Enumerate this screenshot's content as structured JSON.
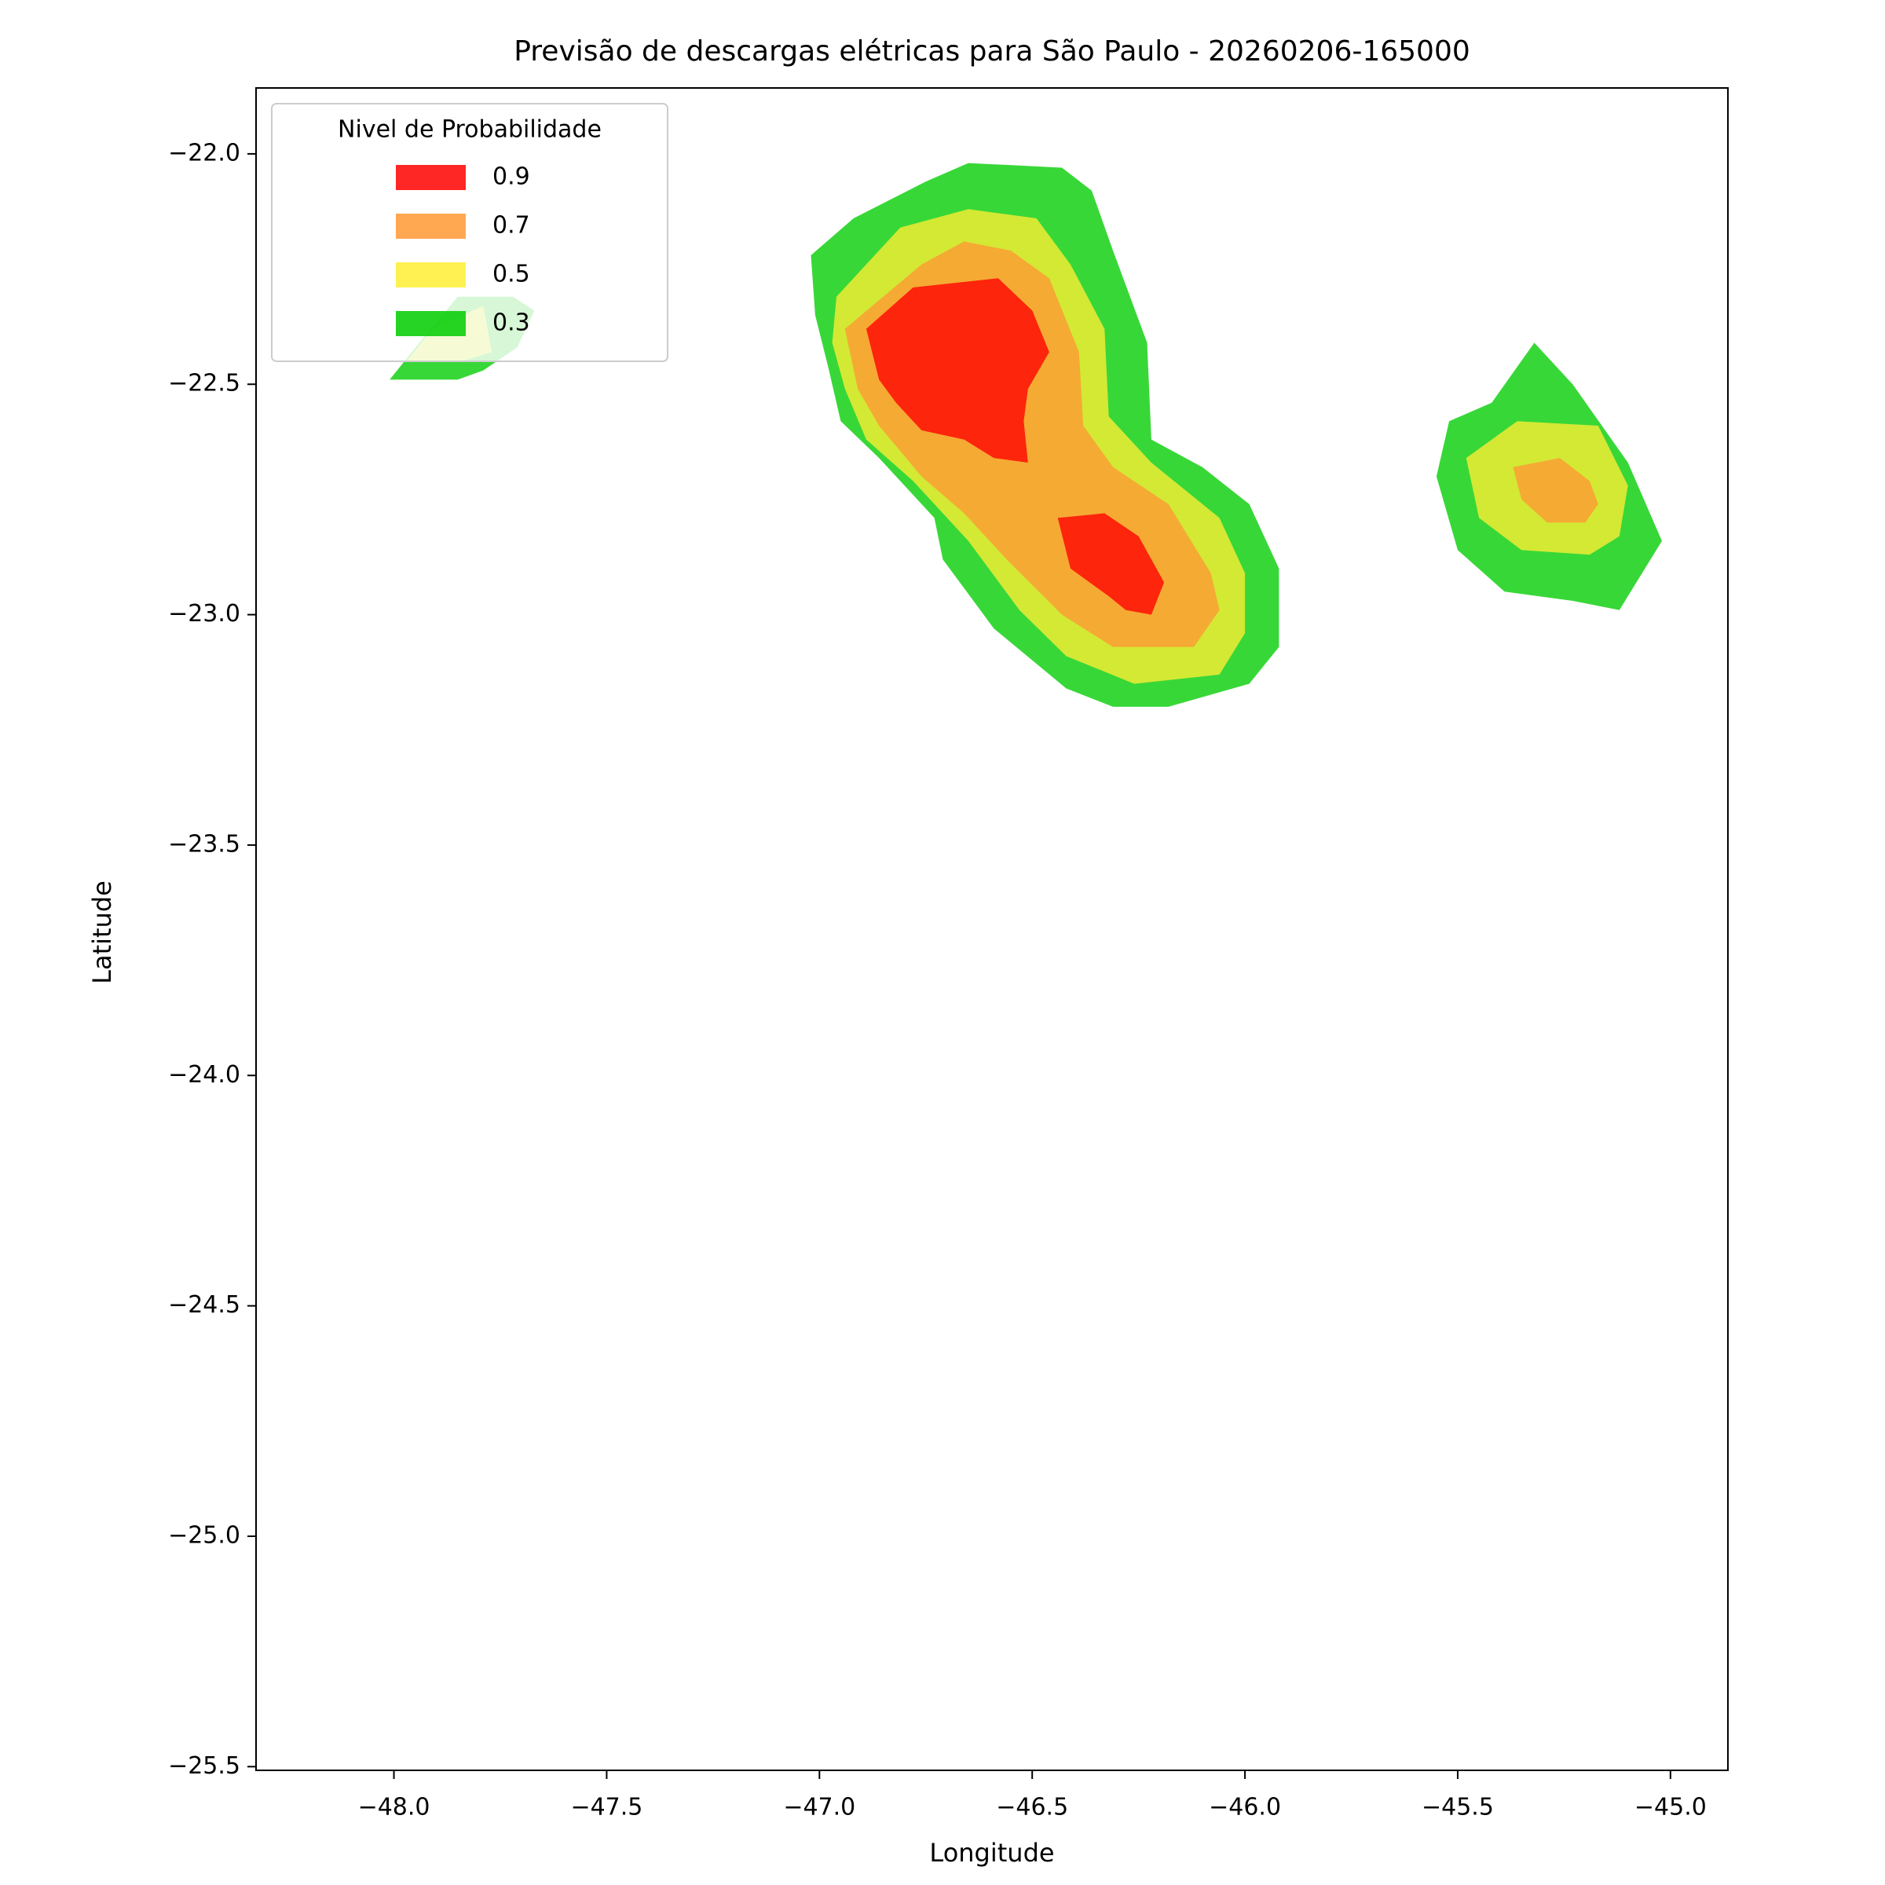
{
  "chart_data": {
    "type": "contour",
    "title": "Previsão de descargas elétricas para São Paulo - 20260206-165000",
    "xlabel": "Longitude",
    "ylabel": "Latitude",
    "legend_title": "Nivel de Probabilidade",
    "legend": "upper left",
    "xlim": [
      -48.324,
      -44.865
    ],
    "ylim": [
      -25.508,
      -21.857
    ],
    "xticks": [
      {
        "value": -48.0,
        "label": "−48.0"
      },
      {
        "value": -47.5,
        "label": "−47.5"
      },
      {
        "value": -47.0,
        "label": "−47.0"
      },
      {
        "value": -46.5,
        "label": "−46.5"
      },
      {
        "value": -46.0,
        "label": "−46.0"
      },
      {
        "value": -45.5,
        "label": "−45.5"
      },
      {
        "value": -45.0,
        "label": "−45.0"
      }
    ],
    "yticks": [
      {
        "value": -22.0,
        "label": "−22.0"
      },
      {
        "value": -22.5,
        "label": "−22.5"
      },
      {
        "value": -23.0,
        "label": "−23.0"
      },
      {
        "value": -23.5,
        "label": "−23.5"
      },
      {
        "value": -24.0,
        "label": "−24.0"
      },
      {
        "value": -24.5,
        "label": "−24.5"
      },
      {
        "value": -25.0,
        "label": "−25.0"
      },
      {
        "value": -25.5,
        "label": "−25.5"
      }
    ],
    "series": [
      {
        "name": "0.9",
        "color": "#ff0000",
        "polygons": [
          {
            "x": [
              -46.89,
              -46.78,
              -46.58,
              -46.5,
              -46.46,
              -46.51,
              -46.52,
              -46.51,
              -46.59,
              -46.66,
              -46.76,
              -46.82,
              -46.86
            ],
            "y": [
              -22.38,
              -22.29,
              -22.27,
              -22.34,
              -22.43,
              -22.51,
              -22.58,
              -22.67,
              -22.66,
              -22.62,
              -22.6,
              -22.54,
              -22.49
            ]
          },
          {
            "x": [
              -46.44,
              -46.33,
              -46.25,
              -46.19,
              -46.22,
              -46.28,
              -46.32,
              -46.41
            ],
            "y": [
              -22.79,
              -22.78,
              -22.83,
              -22.93,
              -23.0,
              -22.99,
              -22.96,
              -22.9
            ]
          }
        ]
      },
      {
        "name": "0.7",
        "color": "#ff9933",
        "polygons": [
          {
            "x": [
              -46.94,
              -46.76,
              -46.66,
              -46.55,
              -46.46,
              -46.39,
              -46.38,
              -46.31,
              -46.18,
              -46.08,
              -46.06,
              -46.12,
              -46.31,
              -46.43,
              -46.56,
              -46.66,
              -46.76,
              -46.86,
              -46.91
            ],
            "y": [
              -22.38,
              -22.24,
              -22.19,
              -22.21,
              -22.27,
              -22.43,
              -22.59,
              -22.68,
              -22.76,
              -22.91,
              -22.99,
              -23.07,
              -23.07,
              -23.0,
              -22.88,
              -22.78,
              -22.7,
              -22.59,
              -22.51
            ]
          },
          {
            "x": [
              -45.37,
              -45.26,
              -45.19,
              -45.17,
              -45.2,
              -45.29,
              -45.35
            ],
            "y": [
              -22.68,
              -22.66,
              -22.71,
              -22.76,
              -22.8,
              -22.8,
              -22.75
            ]
          }
        ]
      },
      {
        "name": "0.5",
        "color": "#ffee33",
        "polygons": [
          {
            "x": [
              -46.96,
              -46.81,
              -46.65,
              -46.49,
              -46.41,
              -46.33,
              -46.32,
              -46.22,
              -46.06,
              -46.0,
              -46.0,
              -46.06,
              -46.26,
              -46.42,
              -46.53,
              -46.65,
              -46.78,
              -46.89,
              -46.94,
              -46.97
            ],
            "y": [
              -22.31,
              -22.16,
              -22.12,
              -22.14,
              -22.24,
              -22.38,
              -22.57,
              -22.67,
              -22.79,
              -22.91,
              -23.04,
              -23.13,
              -23.15,
              -23.09,
              -22.99,
              -22.84,
              -22.71,
              -22.62,
              -22.51,
              -22.41
            ]
          },
          {
            "x": [
              -45.48,
              -45.36,
              -45.17,
              -45.1,
              -45.12,
              -45.19,
              -45.35,
              -45.45
            ],
            "y": [
              -22.66,
              -22.58,
              -22.59,
              -22.72,
              -22.83,
              -22.87,
              -22.86,
              -22.79
            ]
          },
          {
            "x": [
              -47.97,
              -47.84,
              -47.77,
              -47.79,
              -47.91
            ],
            "y": [
              -22.45,
              -22.45,
              -22.43,
              -22.33,
              -22.38
            ]
          }
        ]
      },
      {
        "name": "0.3",
        "color": "#00cc00",
        "polygons": [
          {
            "x": [
              -47.02,
              -46.92,
              -46.75,
              -46.65,
              -46.43,
              -46.36,
              -46.31,
              -46.23,
              -46.22,
              -46.1,
              -45.99,
              -45.92,
              -45.92,
              -45.99,
              -46.18,
              -46.31,
              -46.42,
              -46.59,
              -46.71,
              -46.73,
              -46.86,
              -46.95,
              -46.98,
              -47.01
            ],
            "y": [
              -22.22,
              -22.14,
              -22.06,
              -22.02,
              -22.03,
              -22.08,
              -22.21,
              -22.41,
              -22.62,
              -22.68,
              -22.76,
              -22.9,
              -23.07,
              -23.15,
              -23.2,
              -23.2,
              -23.16,
              -23.03,
              -22.88,
              -22.79,
              -22.66,
              -22.58,
              -22.46,
              -22.35
            ]
          },
          {
            "x": [
              -45.32,
              -45.23,
              -45.1,
              -45.02,
              -45.12,
              -45.23,
              -45.39,
              -45.5,
              -45.55,
              -45.52,
              -45.42
            ],
            "y": [
              -22.41,
              -22.5,
              -22.67,
              -22.84,
              -22.99,
              -22.97,
              -22.95,
              -22.86,
              -22.7,
              -22.58,
              -22.54
            ]
          },
          {
            "x": [
              -48.01,
              -47.85,
              -47.79,
              -47.71,
              -47.67,
              -47.72,
              -47.85,
              -47.94
            ],
            "y": [
              -22.49,
              -22.49,
              -22.47,
              -22.42,
              -22.34,
              -22.31,
              -22.31,
              -22.41
            ]
          }
        ]
      }
    ]
  }
}
